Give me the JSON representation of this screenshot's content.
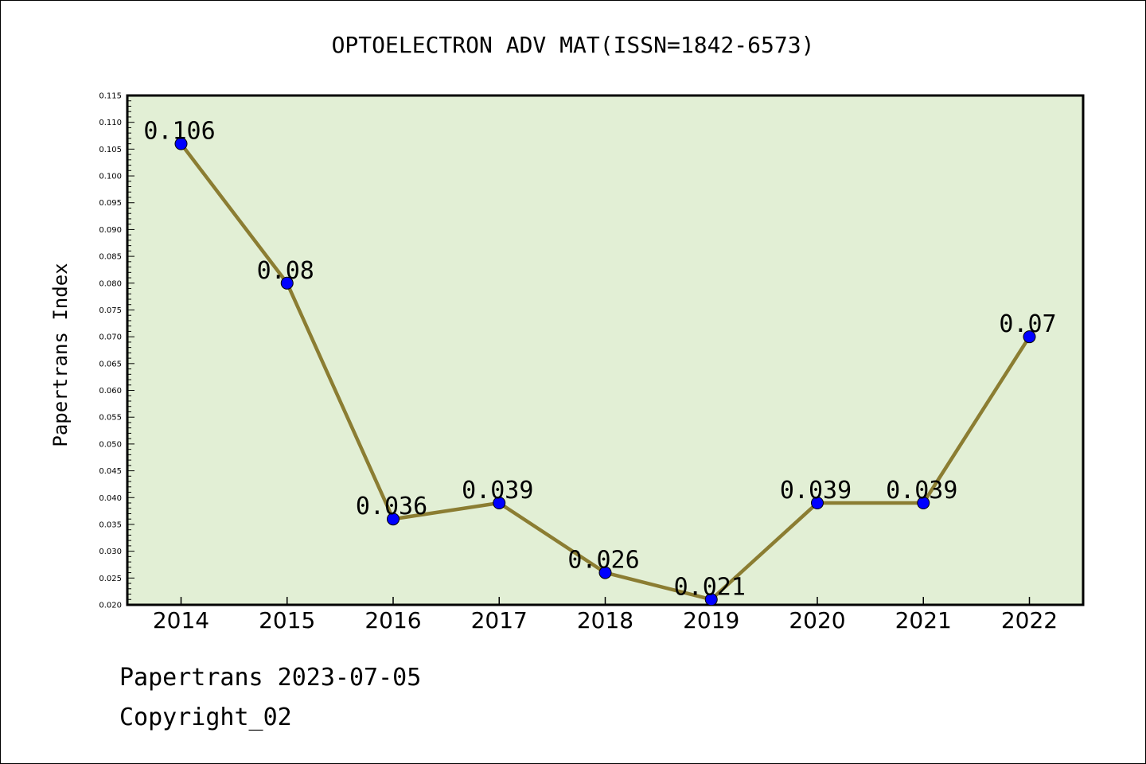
{
  "chart_data": {
    "type": "line",
    "title": "OPTOELECTRON ADV MAT(ISSN=1842-6573)",
    "xlabel": "",
    "ylabel": "Papertrans Index",
    "categories": [
      "2014",
      "2015",
      "2016",
      "2017",
      "2018",
      "2019",
      "2020",
      "2021",
      "2022"
    ],
    "values": [
      0.106,
      0.08,
      0.036,
      0.039,
      0.026,
      0.021,
      0.039,
      0.039,
      0.07
    ],
    "data_labels": [
      "0.106",
      "0.08",
      "0.036",
      "0.039",
      "0.026",
      "0.021",
      "0.039",
      "0.039",
      "0.07"
    ],
    "ylim": [
      0.02,
      0.115
    ],
    "yticks": [
      "0.020",
      "0.025",
      "0.030",
      "0.035",
      "0.040",
      "0.045",
      "0.050",
      "0.055",
      "0.060",
      "0.065",
      "0.070",
      "0.075",
      "0.080",
      "0.085",
      "0.090",
      "0.095",
      "0.100",
      "0.105",
      "0.110",
      "0.115"
    ],
    "grid": false,
    "legend": "none",
    "colors": {
      "plot_background": "#e2efd5",
      "line": "#8b7d32",
      "marker": "#0000ff"
    }
  },
  "footer": {
    "date_line": "Papertrans 2023-07-05",
    "copyright": "Copyright_02"
  }
}
